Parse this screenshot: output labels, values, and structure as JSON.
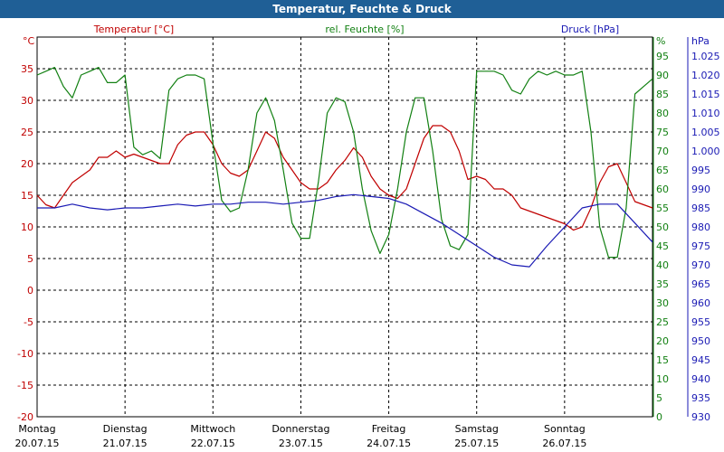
{
  "window": {
    "title": "Temperatur, Feuchte & Druck"
  },
  "colors": {
    "temperature": "#c00000",
    "humidity": "#128012",
    "pressure": "#1a1ab4",
    "grid": "#000000",
    "titlebar": "#1f5f96"
  },
  "chart_data": {
    "type": "line",
    "title": "Temperatur, Feuchte & Druck",
    "grid": true,
    "axes": {
      "left": {
        "label": "Temperatur [°C]",
        "unit": "°C",
        "range": [
          -20,
          40
        ],
        "ticks": [
          "35",
          "30",
          "25",
          "20",
          "15",
          "10",
          "5",
          "0",
          "-5",
          "-10",
          "-15",
          "-20"
        ]
      },
      "right1": {
        "label": "rel. Feuchte [%]",
        "unit": "%",
        "range": [
          0,
          100
        ],
        "ticks": [
          "95",
          "90",
          "85",
          "80",
          "75",
          "70",
          "65",
          "60",
          "55",
          "50",
          "45",
          "40",
          "35",
          "30",
          "25",
          "20",
          "15",
          "10",
          "5",
          "0"
        ]
      },
      "right2": {
        "label": "Druck [hPa]",
        "unit": "hPa",
        "range": [
          930,
          1030
        ],
        "ticks": [
          "1.025",
          "1.020",
          "1.015",
          "1.010",
          "1.005",
          "1.000",
          "995",
          "990",
          "985",
          "980",
          "975",
          "970",
          "965",
          "960",
          "955",
          "950",
          "945",
          "940",
          "935",
          "930"
        ]
      }
    },
    "x_ticks": [
      {
        "day": "Montag",
        "date": "20.07.15"
      },
      {
        "day": "Dienstag",
        "date": "21.07.15"
      },
      {
        "day": "Mittwoch",
        "date": "22.07.15"
      },
      {
        "day": "Donnerstag",
        "date": "23.07.15"
      },
      {
        "day": "Freitag",
        "date": "24.07.15"
      },
      {
        "day": "Samstag",
        "date": "25.07.15"
      },
      {
        "day": "Sonntag",
        "date": "26.07.15"
      }
    ],
    "x_range_days": [
      0,
      7
    ],
    "series": [
      {
        "name": "Temperatur [°C]",
        "axis": "left",
        "x": [
          0,
          0.1,
          0.2,
          0.3,
          0.4,
          0.5,
          0.6,
          0.7,
          0.8,
          0.9,
          1.0,
          1.1,
          1.2,
          1.3,
          1.4,
          1.5,
          1.6,
          1.7,
          1.8,
          1.9,
          2.0,
          2.1,
          2.2,
          2.3,
          2.4,
          2.5,
          2.6,
          2.7,
          2.8,
          2.9,
          3.0,
          3.1,
          3.2,
          3.3,
          3.4,
          3.5,
          3.6,
          3.7,
          3.8,
          3.9,
          4.0,
          4.1,
          4.2,
          4.3,
          4.4,
          4.5,
          4.6,
          4.7,
          4.8,
          4.9,
          5.0,
          5.1,
          5.2,
          5.3,
          5.4,
          5.5,
          5.6,
          5.7,
          5.8,
          5.9,
          6.0,
          6.1,
          6.2,
          6.3,
          6.4,
          6.5,
          6.6,
          6.7,
          6.8,
          6.9,
          7.0
        ],
        "values": [
          15,
          13.5,
          13,
          15,
          17,
          18,
          19,
          21,
          21,
          22,
          21,
          21.5,
          21,
          20.5,
          20,
          20,
          23,
          24.5,
          25,
          25,
          23,
          20,
          18.5,
          18,
          19,
          22,
          25,
          24,
          21,
          19,
          17,
          16,
          16,
          17,
          19,
          20.5,
          22.5,
          21,
          18,
          16,
          15,
          14.5,
          16,
          20,
          24,
          26,
          26,
          25,
          22,
          17.5,
          18,
          17.5,
          16,
          16,
          15,
          13,
          12.5,
          12,
          11.5,
          11,
          10.5,
          9.5,
          10,
          13,
          17,
          19.5,
          20,
          17,
          14,
          13.5,
          13
        ]
      },
      {
        "name": "rel. Feuchte [%]",
        "axis": "right1",
        "x": [
          0,
          0.1,
          0.2,
          0.3,
          0.4,
          0.5,
          0.6,
          0.7,
          0.8,
          0.9,
          1.0,
          1.1,
          1.2,
          1.3,
          1.4,
          1.5,
          1.6,
          1.7,
          1.8,
          1.9,
          2.0,
          2.1,
          2.2,
          2.3,
          2.4,
          2.5,
          2.6,
          2.7,
          2.8,
          2.9,
          3.0,
          3.1,
          3.2,
          3.3,
          3.4,
          3.5,
          3.6,
          3.7,
          3.8,
          3.9,
          4.0,
          4.1,
          4.2,
          4.3,
          4.4,
          4.5,
          4.6,
          4.7,
          4.8,
          4.9,
          5.0,
          5.1,
          5.2,
          5.3,
          5.4,
          5.5,
          5.6,
          5.7,
          5.8,
          5.9,
          6.0,
          6.1,
          6.2,
          6.3,
          6.4,
          6.5,
          6.6,
          6.7,
          6.8,
          6.9,
          7.0
        ],
        "values": [
          90,
          91,
          92,
          87,
          84,
          90,
          91,
          92,
          88,
          88,
          90,
          71,
          69,
          70,
          68,
          86,
          89,
          90,
          90,
          89,
          72,
          57,
          54,
          55,
          65,
          80,
          84,
          78,
          65,
          51,
          47,
          47,
          62,
          80,
          84,
          83,
          75,
          60,
          49,
          43,
          48,
          60,
          75,
          84,
          84,
          70,
          52,
          45,
          44,
          48,
          91,
          91,
          91,
          90,
          86,
          85,
          89,
          91,
          90,
          91,
          90,
          90,
          91,
          75,
          50,
          42,
          42,
          55,
          85,
          87,
          89
        ]
      },
      {
        "name": "Druck [hPa]",
        "axis": "right2",
        "x": [
          0,
          0.2,
          0.4,
          0.6,
          0.8,
          1.0,
          1.2,
          1.4,
          1.6,
          1.8,
          2.0,
          2.2,
          2.4,
          2.6,
          2.8,
          3.0,
          3.2,
          3.4,
          3.6,
          3.8,
          4.0,
          4.2,
          4.4,
          4.6,
          4.8,
          5.0,
          5.2,
          5.4,
          5.6,
          5.8,
          6.0,
          6.2,
          6.4,
          6.6,
          6.8,
          7.0
        ],
        "values": [
          985,
          985,
          986,
          985,
          984.5,
          985,
          985,
          985.5,
          986,
          985.5,
          986,
          986,
          986.5,
          986.5,
          986,
          986.5,
          987,
          988,
          988.5,
          988,
          987.5,
          986,
          983.5,
          981,
          978,
          975,
          972,
          970,
          969.5,
          975,
          980,
          985,
          986,
          986,
          981,
          976
        ]
      }
    ]
  }
}
